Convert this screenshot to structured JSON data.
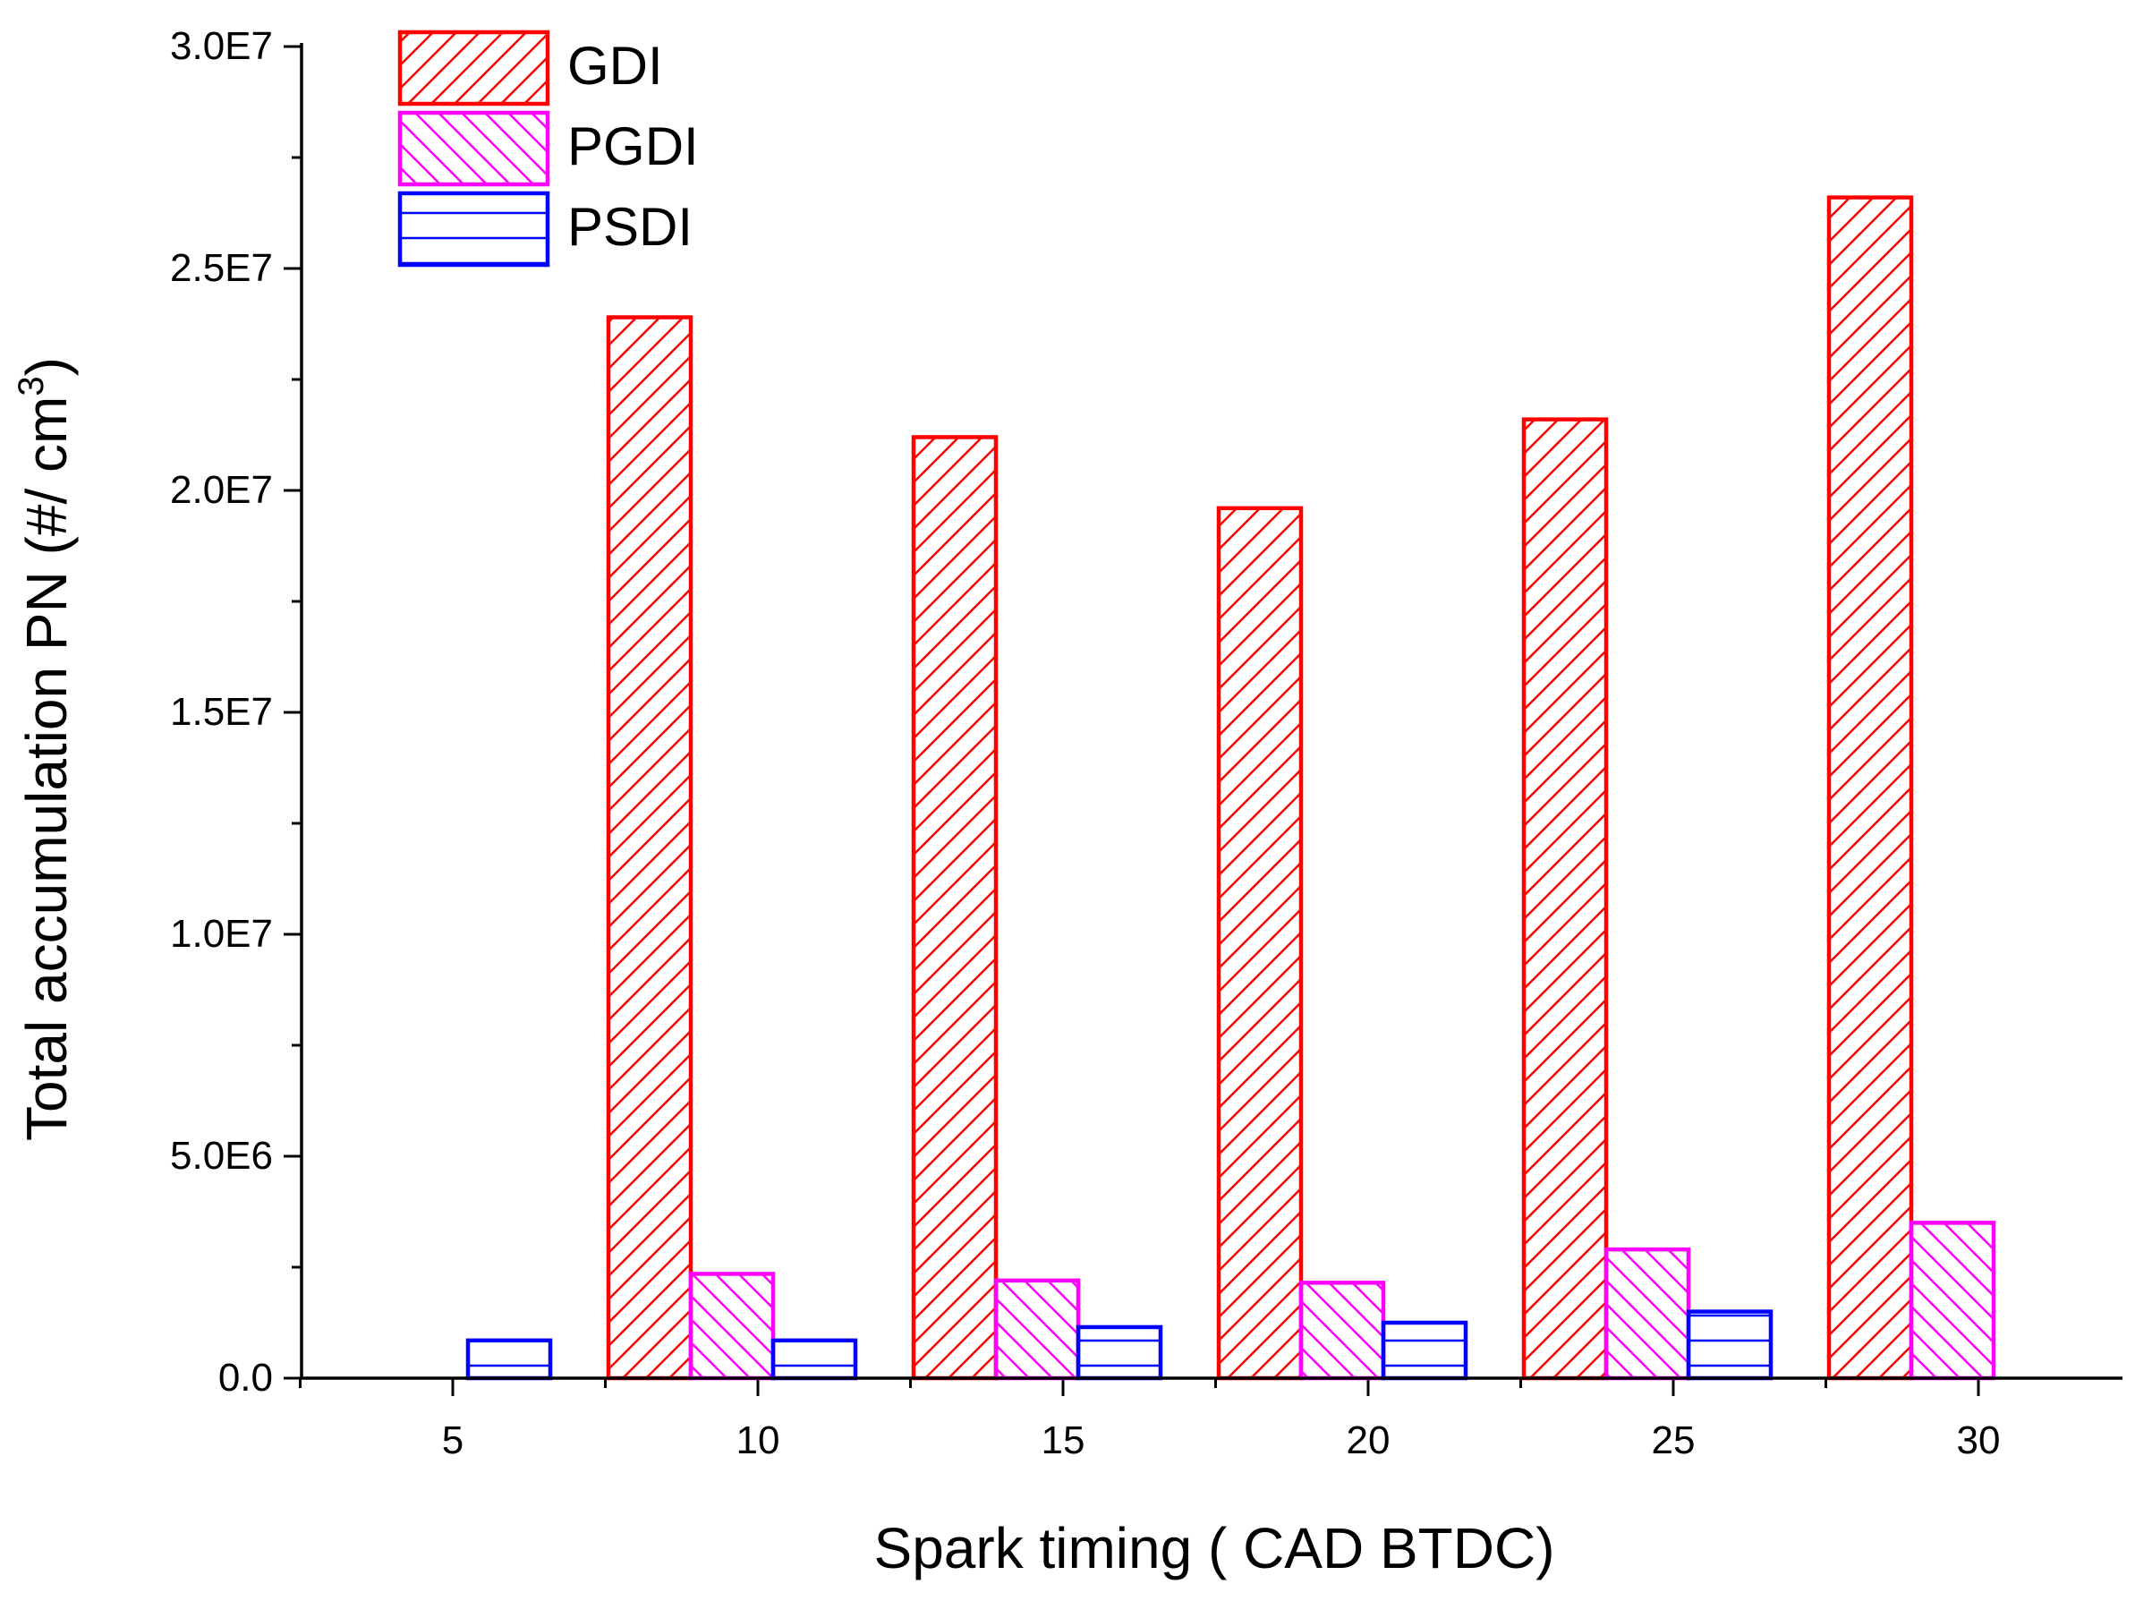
{
  "chart_data": {
    "type": "bar",
    "xlabel": "Spark timing ( CAD BTDC)",
    "ylabel_main": "Total accumulation PN (#/ cm",
    "ylabel_sup": "3",
    "ylabel_close": ")",
    "ylim": [
      0,
      30000000
    ],
    "yticks": [
      0,
      5000000,
      10000000,
      15000000,
      20000000,
      25000000,
      30000000
    ],
    "ytick_labels": [
      "0.0",
      "5.0E6",
      "1.0E7",
      "1.5E7",
      "2.0E7",
      "2.5E7",
      "3.0E7"
    ],
    "categories": [
      "5",
      "10",
      "15",
      "20",
      "25",
      "30"
    ],
    "legend_position": "top-left",
    "series": [
      {
        "name": "GDI",
        "color": "#ff0000",
        "pattern": "diagonal-up",
        "values": [
          null,
          23900000,
          21200000,
          19600000,
          21600000,
          26600000
        ]
      },
      {
        "name": "PGDI",
        "color": "#ff00ff",
        "pattern": "diagonal-down",
        "values": [
          null,
          2350000,
          2200000,
          2150000,
          2900000,
          3500000
        ]
      },
      {
        "name": "PSDI",
        "color": "#0000ff",
        "pattern": "horizontal",
        "values": [
          850000,
          850000,
          1150000,
          1250000,
          1500000,
          null
        ]
      }
    ]
  }
}
